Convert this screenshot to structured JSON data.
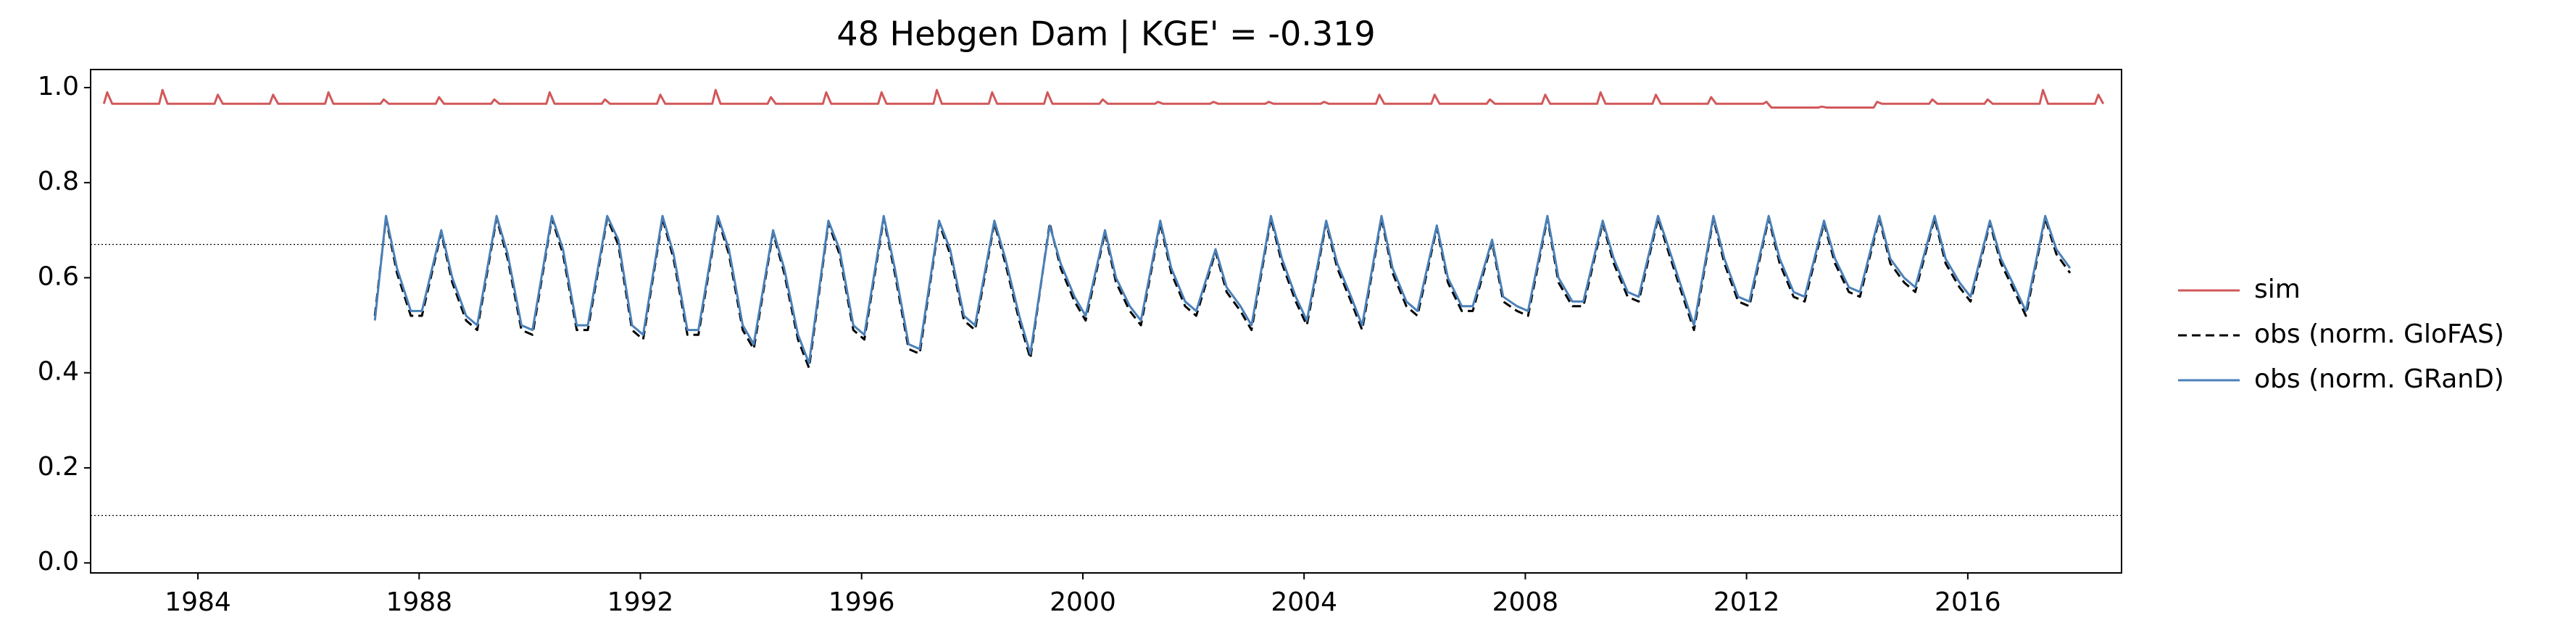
{
  "chart_data": {
    "type": "line",
    "title": "48  Hebgen Dam | KGE' = -0.319",
    "xlim": [
      1982.06,
      2018.78
    ],
    "xticks": [
      1984,
      1988,
      1992,
      1996,
      2000,
      2004,
      2008,
      2012,
      2016
    ],
    "ylim": [
      -0.021,
      1.038
    ],
    "yticks": [
      {
        "value": 0,
        "label": "0.0"
      },
      0.2,
      0.4,
      0.6,
      0.8,
      {
        "value": 1,
        "label": "1.0"
      }
    ],
    "hlines": [
      0.67,
      0.1
    ],
    "grid": false,
    "legend": "right",
    "series": [
      {
        "name": "sim",
        "color": "#d1585a",
        "linestyle": "solid",
        "x": [
          1982.3,
          1982.36,
          1982.45,
          1983.3,
          1983.36,
          1983.45,
          1984.3,
          1984.36,
          1984.45,
          1985.3,
          1985.36,
          1985.45,
          1986.3,
          1986.36,
          1986.45,
          1987.3,
          1987.36,
          1987.45,
          1988.3,
          1988.36,
          1988.45,
          1989.3,
          1989.36,
          1989.45,
          1990.3,
          1990.36,
          1990.45,
          1991.3,
          1991.36,
          1991.45,
          1992.3,
          1992.36,
          1992.45,
          1993.3,
          1993.36,
          1993.45,
          1994.3,
          1994.36,
          1994.45,
          1995.3,
          1995.36,
          1995.45,
          1996.3,
          1996.36,
          1996.45,
          1997.3,
          1997.36,
          1997.45,
          1998.3,
          1998.36,
          1998.45,
          1999.3,
          1999.36,
          1999.45,
          2000.3,
          2000.36,
          2000.45,
          2001.3,
          2001.36,
          2001.45,
          2002.3,
          2002.36,
          2002.45,
          2003.3,
          2003.36,
          2003.45,
          2004.3,
          2004.36,
          2004.45,
          2005.3,
          2005.36,
          2005.45,
          2006.3,
          2006.36,
          2006.45,
          2007.3,
          2007.36,
          2007.45,
          2008.3,
          2008.36,
          2008.45,
          2009.3,
          2009.36,
          2009.45,
          2010.3,
          2010.36,
          2010.45,
          2011.3,
          2011.36,
          2011.45,
          2012.3,
          2012.36,
          2012.45,
          2013.3,
          2013.36,
          2013.45,
          2014.3,
          2014.36,
          2014.45,
          2015.3,
          2015.36,
          2015.45,
          2016.3,
          2016.36,
          2016.45,
          2017.3,
          2017.36,
          2017.45,
          2018.3,
          2018.36,
          2018.45
        ],
        "values": [
          0.966,
          0.99,
          0.966,
          0.966,
          0.995,
          0.966,
          0.966,
          0.985,
          0.966,
          0.966,
          0.985,
          0.966,
          0.966,
          0.99,
          0.966,
          0.966,
          0.975,
          0.966,
          0.966,
          0.98,
          0.966,
          0.966,
          0.975,
          0.966,
          0.966,
          0.99,
          0.966,
          0.966,
          0.975,
          0.966,
          0.966,
          0.985,
          0.966,
          0.966,
          0.995,
          0.966,
          0.966,
          0.98,
          0.966,
          0.966,
          0.99,
          0.966,
          0.966,
          0.99,
          0.966,
          0.966,
          0.995,
          0.966,
          0.966,
          0.99,
          0.966,
          0.966,
          0.99,
          0.966,
          0.966,
          0.975,
          0.966,
          0.966,
          0.97,
          0.966,
          0.966,
          0.97,
          0.966,
          0.966,
          0.97,
          0.966,
          0.966,
          0.97,
          0.966,
          0.966,
          0.985,
          0.966,
          0.966,
          0.985,
          0.966,
          0.966,
          0.975,
          0.966,
          0.966,
          0.985,
          0.966,
          0.966,
          0.99,
          0.966,
          0.966,
          0.985,
          0.966,
          0.966,
          0.98,
          0.966,
          0.966,
          0.97,
          0.958,
          0.958,
          0.96,
          0.958,
          0.958,
          0.97,
          0.966,
          0.966,
          0.975,
          0.966,
          0.966,
          0.975,
          0.966,
          0.966,
          0.995,
          0.966,
          0.966,
          0.985,
          0.966
        ]
      },
      {
        "name": "obs (norm. GloFAS)",
        "color": "#000000",
        "linestyle": "dashed",
        "x": [
          1987.2,
          1987.4,
          1987.6,
          1987.85,
          1988.05,
          1988.4,
          1988.6,
          1988.85,
          1989.05,
          1989.4,
          1989.6,
          1989.85,
          1990.05,
          1990.4,
          1990.6,
          1990.85,
          1991.05,
          1991.4,
          1991.6,
          1991.85,
          1992.05,
          1992.4,
          1992.6,
          1992.85,
          1993.05,
          1993.4,
          1993.6,
          1993.85,
          1994.05,
          1994.4,
          1994.6,
          1994.85,
          1995.05,
          1995.4,
          1995.6,
          1995.85,
          1996.05,
          1996.4,
          1996.6,
          1996.85,
          1997.05,
          1997.4,
          1997.6,
          1997.85,
          1998.05,
          1998.4,
          1998.6,
          1998.85,
          1999.05,
          1999.4,
          1999.6,
          1999.85,
          2000.05,
          2000.4,
          2000.6,
          2000.85,
          2001.05,
          2001.4,
          2001.6,
          2001.85,
          2002.05,
          2002.4,
          2002.6,
          2002.85,
          2003.05,
          2003.4,
          2003.6,
          2003.85,
          2004.05,
          2004.4,
          2004.6,
          2004.85,
          2005.05,
          2005.4,
          2005.6,
          2005.85,
          2006.05,
          2006.4,
          2006.6,
          2006.85,
          2007.05,
          2007.4,
          2007.6,
          2007.85,
          2008.05,
          2008.4,
          2008.6,
          2008.85,
          2009.05,
          2009.4,
          2009.6,
          2009.85,
          2010.05,
          2010.4,
          2010.6,
          2010.85,
          2011.05,
          2011.4,
          2011.6,
          2011.85,
          2012.05,
          2012.4,
          2012.6,
          2012.85,
          2013.05,
          2013.4,
          2013.6,
          2013.85,
          2014.05,
          2014.4,
          2014.6,
          2014.85,
          2015.05,
          2015.4,
          2015.6,
          2015.85,
          2016.05,
          2016.4,
          2016.6,
          2016.85,
          2017.05,
          2017.4,
          2017.6,
          2017.85
        ],
        "values": [
          0.52,
          0.725,
          0.61,
          0.52,
          0.52,
          0.695,
          0.59,
          0.51,
          0.49,
          0.725,
          0.64,
          0.49,
          0.48,
          0.725,
          0.65,
          0.49,
          0.49,
          0.725,
          0.67,
          0.49,
          0.47,
          0.725,
          0.64,
          0.48,
          0.48,
          0.725,
          0.65,
          0.49,
          0.45,
          0.695,
          0.61,
          0.47,
          0.41,
          0.715,
          0.65,
          0.49,
          0.47,
          0.725,
          0.61,
          0.45,
          0.44,
          0.715,
          0.65,
          0.51,
          0.49,
          0.715,
          0.63,
          0.51,
          0.43,
          0.715,
          0.62,
          0.55,
          0.51,
          0.695,
          0.59,
          0.53,
          0.5,
          0.715,
          0.61,
          0.54,
          0.52,
          0.655,
          0.57,
          0.53,
          0.49,
          0.725,
          0.63,
          0.55,
          0.5,
          0.715,
          0.62,
          0.55,
          0.49,
          0.725,
          0.61,
          0.54,
          0.52,
          0.705,
          0.59,
          0.53,
          0.53,
          0.675,
          0.55,
          0.53,
          0.52,
          0.725,
          0.59,
          0.54,
          0.54,
          0.715,
          0.63,
          0.56,
          0.55,
          0.725,
          0.65,
          0.56,
          0.49,
          0.725,
          0.63,
          0.55,
          0.54,
          0.725,
          0.63,
          0.56,
          0.55,
          0.715,
          0.63,
          0.57,
          0.56,
          0.725,
          0.63,
          0.59,
          0.57,
          0.725,
          0.63,
          0.58,
          0.55,
          0.715,
          0.63,
          0.57,
          0.52,
          0.725,
          0.65,
          0.61
        ]
      },
      {
        "name": "obs (norm. GRanD)",
        "color": "#4a80b8",
        "linestyle": "solid",
        "x": [
          1987.2,
          1987.4,
          1987.6,
          1987.85,
          1988.05,
          1988.4,
          1988.6,
          1988.85,
          1989.05,
          1989.4,
          1989.6,
          1989.85,
          1990.05,
          1990.4,
          1990.6,
          1990.85,
          1991.05,
          1991.4,
          1991.6,
          1991.85,
          1992.05,
          1992.4,
          1992.6,
          1992.85,
          1993.05,
          1993.4,
          1993.6,
          1993.85,
          1994.05,
          1994.4,
          1994.6,
          1994.85,
          1995.05,
          1995.4,
          1995.6,
          1995.85,
          1996.05,
          1996.4,
          1996.6,
          1996.85,
          1997.05,
          1997.4,
          1997.6,
          1997.85,
          1998.05,
          1998.4,
          1998.6,
          1998.85,
          1999.05,
          1999.4,
          1999.6,
          1999.85,
          2000.05,
          2000.4,
          2000.6,
          2000.85,
          2001.05,
          2001.4,
          2001.6,
          2001.85,
          2002.05,
          2002.4,
          2002.6,
          2002.85,
          2003.05,
          2003.4,
          2003.6,
          2003.85,
          2004.05,
          2004.4,
          2004.6,
          2004.85,
          2005.05,
          2005.4,
          2005.6,
          2005.85,
          2006.05,
          2006.4,
          2006.6,
          2006.85,
          2007.05,
          2007.4,
          2007.6,
          2007.85,
          2008.05,
          2008.4,
          2008.6,
          2008.85,
          2009.05,
          2009.4,
          2009.6,
          2009.85,
          2010.05,
          2010.4,
          2010.6,
          2010.85,
          2011.05,
          2011.4,
          2011.6,
          2011.85,
          2012.05,
          2012.4,
          2012.6,
          2012.85,
          2013.05,
          2013.4,
          2013.6,
          2013.85,
          2014.05,
          2014.4,
          2014.6,
          2014.85,
          2015.05,
          2015.4,
          2015.6,
          2015.85,
          2016.05,
          2016.4,
          2016.6,
          2016.85,
          2017.05,
          2017.4,
          2017.6,
          2017.85
        ],
        "values": [
          0.51,
          0.73,
          0.62,
          0.53,
          0.53,
          0.7,
          0.6,
          0.52,
          0.5,
          0.73,
          0.65,
          0.5,
          0.49,
          0.73,
          0.66,
          0.5,
          0.5,
          0.73,
          0.68,
          0.5,
          0.48,
          0.73,
          0.65,
          0.49,
          0.49,
          0.73,
          0.66,
          0.5,
          0.46,
          0.7,
          0.62,
          0.48,
          0.42,
          0.72,
          0.66,
          0.5,
          0.48,
          0.73,
          0.62,
          0.46,
          0.45,
          0.72,
          0.66,
          0.52,
          0.5,
          0.72,
          0.64,
          0.52,
          0.44,
          0.71,
          0.63,
          0.56,
          0.52,
          0.7,
          0.6,
          0.54,
          0.51,
          0.72,
          0.62,
          0.55,
          0.53,
          0.66,
          0.58,
          0.54,
          0.5,
          0.73,
          0.64,
          0.56,
          0.51,
          0.72,
          0.63,
          0.56,
          0.5,
          0.73,
          0.62,
          0.55,
          0.53,
          0.71,
          0.6,
          0.54,
          0.54,
          0.68,
          0.56,
          0.54,
          0.53,
          0.73,
          0.6,
          0.55,
          0.55,
          0.72,
          0.64,
          0.57,
          0.56,
          0.73,
          0.66,
          0.57,
          0.5,
          0.73,
          0.64,
          0.56,
          0.55,
          0.73,
          0.64,
          0.57,
          0.56,
          0.72,
          0.64,
          0.58,
          0.57,
          0.73,
          0.64,
          0.6,
          0.58,
          0.73,
          0.64,
          0.59,
          0.56,
          0.72,
          0.64,
          0.58,
          0.53,
          0.73,
          0.66,
          0.62
        ]
      }
    ]
  }
}
